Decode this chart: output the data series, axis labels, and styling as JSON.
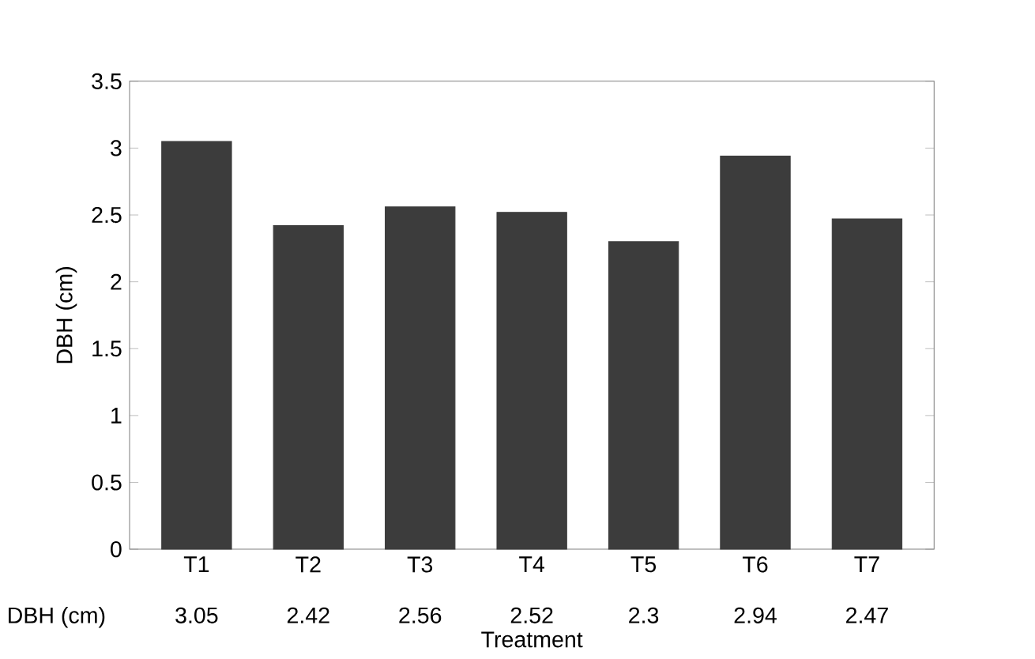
{
  "chart_data": {
    "type": "bar",
    "xlabel": "Treatment",
    "ylabel": "DBH (cm)",
    "categories": [
      "T1",
      "T2",
      "T3",
      "T4",
      "T5",
      "T6",
      "T7"
    ],
    "values": [
      3.05,
      2.42,
      2.56,
      2.52,
      2.3,
      2.94,
      2.47
    ],
    "color": "#3c3c3c",
    "ylim": [
      0,
      3.5
    ],
    "yticks": [
      0,
      0.5,
      1,
      1.5,
      2,
      2.5,
      3,
      3.5
    ],
    "data_labels": true,
    "annotations": [
      "DBH (cm)"
    ]
  }
}
